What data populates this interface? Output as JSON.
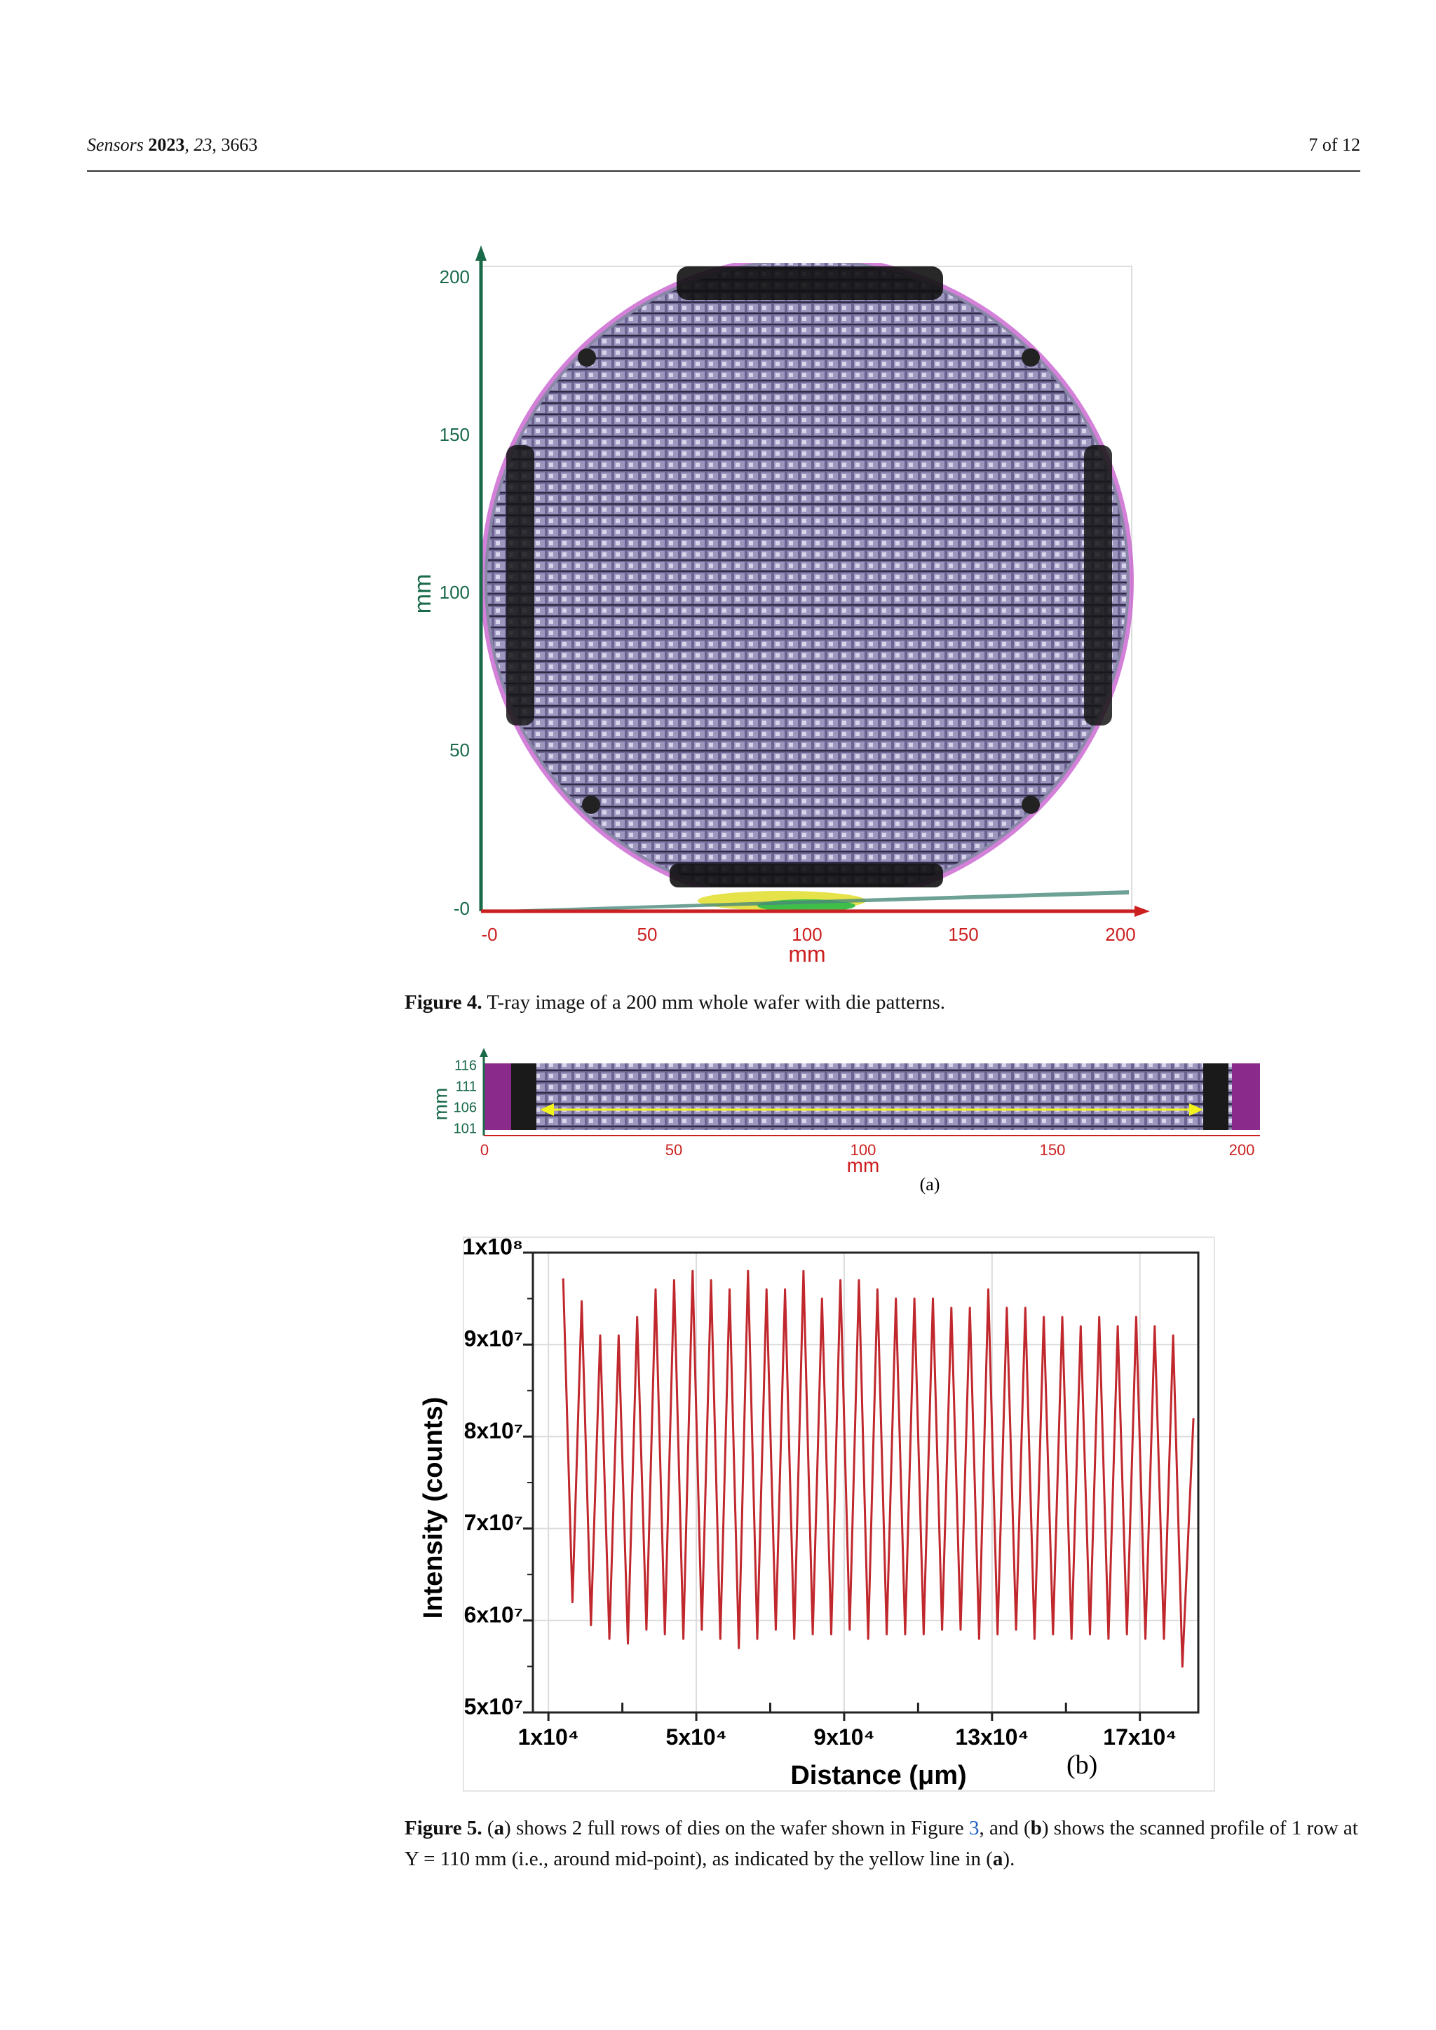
{
  "header": {
    "citation": [
      "Sensors",
      " 2023",
      ", 23",
      ", 3663"
    ],
    "page": "7 of 12"
  },
  "figure4": {
    "x_axis_label": "mm",
    "y_axis_label": "mm",
    "yticks": [
      "200",
      "150",
      "100",
      "50",
      "-0"
    ],
    "xticks": [
      "-0",
      "50",
      "100",
      "150",
      "200"
    ],
    "caption": [
      {
        "text": "Figure 4.",
        "style": "bold"
      },
      {
        "text": " T-ray image of a 200 mm whole wafer with die patterns.",
        "style": "plain"
      }
    ]
  },
  "figure5": {
    "panel_a": {
      "y_axis_label": "mm",
      "x_axis_label": "mm",
      "yticks": [
        "116",
        "111",
        "106",
        "101"
      ],
      "xticks": [
        "0",
        "50",
        "100",
        "150",
        "200"
      ],
      "label": "(a)"
    },
    "panel_b_label": "(b)",
    "caption": [
      {
        "text": "Figure 5.",
        "style": "bold"
      },
      {
        "text": " (",
        "style": "plain"
      },
      {
        "text": "a",
        "style": "bold"
      },
      {
        "text": ") shows 2 full rows of dies on the wafer shown in Figure ",
        "style": "plain"
      },
      {
        "text": "3",
        "style": "link"
      },
      {
        "text": ", and (",
        "style": "plain"
      },
      {
        "text": "b",
        "style": "bold"
      },
      {
        "text": ") shows the scanned profile of 1 row at Y = 110 mm (i.e., around mid-point), as indicated by the yellow line in (",
        "style": "plain"
      },
      {
        "text": "a",
        "style": "bold"
      },
      {
        "text": ").",
        "style": "plain"
      }
    ]
  },
  "chart_data": {
    "type": "line",
    "x_axis_label": "Distance (μm)",
    "y_axis_label": "Intensity (counts)",
    "x": [
      14000,
      16500,
      19000,
      21500,
      24000,
      26500,
      29000,
      31500,
      34000,
      36500,
      39000,
      41500,
      44000,
      46500,
      49000,
      51500,
      54000,
      56500,
      59000,
      61500,
      64000,
      66500,
      69000,
      71500,
      74000,
      76500,
      79000,
      81500,
      84000,
      86500,
      89000,
      91500,
      94000,
      96500,
      99000,
      101500,
      104000,
      106500,
      109000,
      111500,
      114000,
      116500,
      119000,
      121500,
      124000,
      126500,
      129000,
      131500,
      134000,
      136500,
      139000,
      141500,
      144000,
      146500,
      149000,
      151500,
      154000,
      156500,
      159000,
      161500,
      164000,
      166500,
      169000,
      171500,
      174000,
      176500,
      179000,
      181500,
      184500
    ],
    "series": [
      {
        "color": "#c0282d",
        "values": [
          97200000,
          62000000,
          94700000,
          59500000,
          91000000,
          58000000,
          91000000,
          57500000,
          93000000,
          59000000,
          96000000,
          58500000,
          97000000,
          58000000,
          98000000,
          59000000,
          97000000,
          58000000,
          96000000,
          57000000,
          98000000,
          58000000,
          96000000,
          59000000,
          96000000,
          58000000,
          98000000,
          58500000,
          95000000,
          58500000,
          97000000,
          59000000,
          97000000,
          58000000,
          96000000,
          58500000,
          95000000,
          58500000,
          95000000,
          58500000,
          95000000,
          59000000,
          94000000,
          59000000,
          94000000,
          58000000,
          96000000,
          58500000,
          94000000,
          59000000,
          94000000,
          58000000,
          93000000,
          58500000,
          93000000,
          58000000,
          92000000,
          58500000,
          93000000,
          58000000,
          92000000,
          58500000,
          93000000,
          58000000,
          92000000,
          58000000,
          91000000,
          55000000,
          82000000
        ]
      }
    ],
    "xlim": [
      5800,
      185800
    ],
    "ylim": [
      50000000,
      100000000
    ],
    "xticks": [
      {
        "value": 10000,
        "label": "1x10⁴"
      },
      {
        "value": 50000,
        "label": "5x10⁴"
      },
      {
        "value": 90000,
        "label": "9x10⁴"
      },
      {
        "value": 130000,
        "label": "13x10⁴"
      },
      {
        "value": 170000,
        "label": "17x10⁴"
      }
    ],
    "yticks": [
      {
        "value": 50000000,
        "label": "5x10⁷"
      },
      {
        "value": 60000000,
        "label": "6x10⁷"
      },
      {
        "value": 70000000,
        "label": "7x10⁷"
      },
      {
        "value": 80000000,
        "label": "8x10⁷"
      },
      {
        "value": 90000000,
        "label": "9x10⁷"
      },
      {
        "value": 100000000,
        "label": "1x10⁸"
      }
    ],
    "grid": true
  }
}
